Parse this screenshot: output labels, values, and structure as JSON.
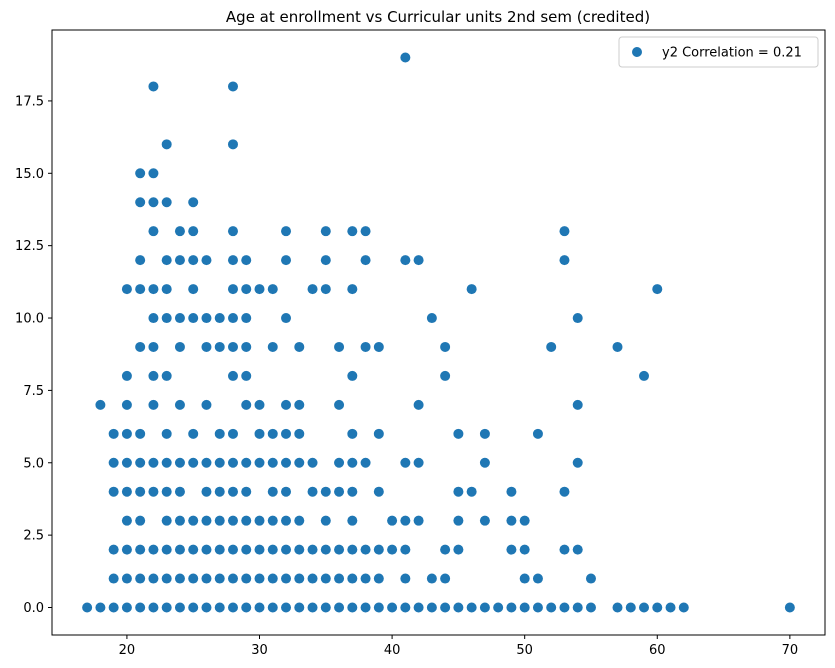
{
  "chart_data": {
    "type": "scatter",
    "title": "Age at enrollment vs Curricular units 2nd sem (credited)",
    "xlabel": "",
    "ylabel": "",
    "xlim": [
      14.35,
      72.65
    ],
    "ylim": [
      -0.95,
      19.95
    ],
    "x_ticks": [
      20,
      30,
      40,
      50,
      60,
      70
    ],
    "y_ticks": [
      0.0,
      2.5,
      5.0,
      7.5,
      10.0,
      12.5,
      15.0,
      17.5
    ],
    "x_tick_labels": [
      "20",
      "30",
      "40",
      "50",
      "60",
      "70"
    ],
    "y_tick_labels": [
      "0.0",
      "2.5",
      "5.0",
      "7.5",
      "10.0",
      "12.5",
      "15.0",
      "17.5"
    ],
    "legend": {
      "position": "top-right",
      "label": "y2 Correlation = 0.21"
    },
    "marker_color": "#1f77b4",
    "series": [
      {
        "name": "y2 Correlation = 0.21",
        "points": [
          [
            17,
            0
          ],
          [
            18,
            0
          ],
          [
            19,
            0
          ],
          [
            20,
            0
          ],
          [
            21,
            0
          ],
          [
            22,
            0
          ],
          [
            23,
            0
          ],
          [
            24,
            0
          ],
          [
            25,
            0
          ],
          [
            26,
            0
          ],
          [
            27,
            0
          ],
          [
            28,
            0
          ],
          [
            29,
            0
          ],
          [
            30,
            0
          ],
          [
            31,
            0
          ],
          [
            32,
            0
          ],
          [
            33,
            0
          ],
          [
            34,
            0
          ],
          [
            35,
            0
          ],
          [
            36,
            0
          ],
          [
            37,
            0
          ],
          [
            38,
            0
          ],
          [
            39,
            0
          ],
          [
            40,
            0
          ],
          [
            41,
            0
          ],
          [
            42,
            0
          ],
          [
            43,
            0
          ],
          [
            44,
            0
          ],
          [
            45,
            0
          ],
          [
            46,
            0
          ],
          [
            47,
            0
          ],
          [
            48,
            0
          ],
          [
            49,
            0
          ],
          [
            50,
            0
          ],
          [
            51,
            0
          ],
          [
            52,
            0
          ],
          [
            53,
            0
          ],
          [
            54,
            0
          ],
          [
            55,
            0
          ],
          [
            57,
            0
          ],
          [
            58,
            0
          ],
          [
            59,
            0
          ],
          [
            60,
            0
          ],
          [
            61,
            0
          ],
          [
            62,
            0
          ],
          [
            70,
            0
          ],
          [
            19,
            1
          ],
          [
            20,
            1
          ],
          [
            21,
            1
          ],
          [
            22,
            1
          ],
          [
            23,
            1
          ],
          [
            24,
            1
          ],
          [
            25,
            1
          ],
          [
            26,
            1
          ],
          [
            27,
            1
          ],
          [
            28,
            1
          ],
          [
            29,
            1
          ],
          [
            30,
            1
          ],
          [
            31,
            1
          ],
          [
            32,
            1
          ],
          [
            33,
            1
          ],
          [
            34,
            1
          ],
          [
            35,
            1
          ],
          [
            36,
            1
          ],
          [
            37,
            1
          ],
          [
            38,
            1
          ],
          [
            39,
            1
          ],
          [
            41,
            1
          ],
          [
            43,
            1
          ],
          [
            44,
            1
          ],
          [
            50,
            1
          ],
          [
            51,
            1
          ],
          [
            55,
            1
          ],
          [
            19,
            2
          ],
          [
            20,
            2
          ],
          [
            21,
            2
          ],
          [
            22,
            2
          ],
          [
            23,
            2
          ],
          [
            24,
            2
          ],
          [
            25,
            2
          ],
          [
            26,
            2
          ],
          [
            27,
            2
          ],
          [
            28,
            2
          ],
          [
            29,
            2
          ],
          [
            30,
            2
          ],
          [
            31,
            2
          ],
          [
            32,
            2
          ],
          [
            33,
            2
          ],
          [
            34,
            2
          ],
          [
            35,
            2
          ],
          [
            36,
            2
          ],
          [
            37,
            2
          ],
          [
            38,
            2
          ],
          [
            39,
            2
          ],
          [
            40,
            2
          ],
          [
            41,
            2
          ],
          [
            44,
            2
          ],
          [
            45,
            2
          ],
          [
            49,
            2
          ],
          [
            50,
            2
          ],
          [
            53,
            2
          ],
          [
            54,
            2
          ],
          [
            20,
            3
          ],
          [
            21,
            3
          ],
          [
            23,
            3
          ],
          [
            24,
            3
          ],
          [
            25,
            3
          ],
          [
            26,
            3
          ],
          [
            27,
            3
          ],
          [
            28,
            3
          ],
          [
            29,
            3
          ],
          [
            30,
            3
          ],
          [
            31,
            3
          ],
          [
            32,
            3
          ],
          [
            33,
            3
          ],
          [
            35,
            3
          ],
          [
            37,
            3
          ],
          [
            40,
            3
          ],
          [
            41,
            3
          ],
          [
            42,
            3
          ],
          [
            45,
            3
          ],
          [
            47,
            3
          ],
          [
            49,
            3
          ],
          [
            50,
            3
          ],
          [
            19,
            4
          ],
          [
            20,
            4
          ],
          [
            21,
            4
          ],
          [
            22,
            4
          ],
          [
            23,
            4
          ],
          [
            24,
            4
          ],
          [
            26,
            4
          ],
          [
            27,
            4
          ],
          [
            28,
            4
          ],
          [
            29,
            4
          ],
          [
            31,
            4
          ],
          [
            32,
            4
          ],
          [
            34,
            4
          ],
          [
            35,
            4
          ],
          [
            36,
            4
          ],
          [
            37,
            4
          ],
          [
            39,
            4
          ],
          [
            45,
            4
          ],
          [
            46,
            4
          ],
          [
            49,
            4
          ],
          [
            53,
            4
          ],
          [
            19,
            5
          ],
          [
            20,
            5
          ],
          [
            21,
            5
          ],
          [
            22,
            5
          ],
          [
            23,
            5
          ],
          [
            24,
            5
          ],
          [
            25,
            5
          ],
          [
            26,
            5
          ],
          [
            27,
            5
          ],
          [
            28,
            5
          ],
          [
            29,
            5
          ],
          [
            30,
            5
          ],
          [
            31,
            5
          ],
          [
            32,
            5
          ],
          [
            33,
            5
          ],
          [
            34,
            5
          ],
          [
            36,
            5
          ],
          [
            37,
            5
          ],
          [
            38,
            5
          ],
          [
            41,
            5
          ],
          [
            42,
            5
          ],
          [
            47,
            5
          ],
          [
            54,
            5
          ],
          [
            19,
            6
          ],
          [
            20,
            6
          ],
          [
            21,
            6
          ],
          [
            23,
            6
          ],
          [
            25,
            6
          ],
          [
            27,
            6
          ],
          [
            28,
            6
          ],
          [
            30,
            6
          ],
          [
            31,
            6
          ],
          [
            32,
            6
          ],
          [
            33,
            6
          ],
          [
            37,
            6
          ],
          [
            39,
            6
          ],
          [
            45,
            6
          ],
          [
            47,
            6
          ],
          [
            51,
            6
          ],
          [
            18,
            7
          ],
          [
            20,
            7
          ],
          [
            22,
            7
          ],
          [
            24,
            7
          ],
          [
            26,
            7
          ],
          [
            29,
            7
          ],
          [
            30,
            7
          ],
          [
            32,
            7
          ],
          [
            33,
            7
          ],
          [
            36,
            7
          ],
          [
            42,
            7
          ],
          [
            54,
            7
          ],
          [
            20,
            8
          ],
          [
            22,
            8
          ],
          [
            23,
            8
          ],
          [
            28,
            8
          ],
          [
            29,
            8
          ],
          [
            37,
            8
          ],
          [
            44,
            8
          ],
          [
            59,
            8
          ],
          [
            21,
            9
          ],
          [
            22,
            9
          ],
          [
            24,
            9
          ],
          [
            26,
            9
          ],
          [
            27,
            9
          ],
          [
            28,
            9
          ],
          [
            29,
            9
          ],
          [
            31,
            9
          ],
          [
            33,
            9
          ],
          [
            36,
            9
          ],
          [
            38,
            9
          ],
          [
            39,
            9
          ],
          [
            44,
            9
          ],
          [
            52,
            9
          ],
          [
            57,
            9
          ],
          [
            22,
            10
          ],
          [
            23,
            10
          ],
          [
            24,
            10
          ],
          [
            25,
            10
          ],
          [
            26,
            10
          ],
          [
            27,
            10
          ],
          [
            28,
            10
          ],
          [
            29,
            10
          ],
          [
            32,
            10
          ],
          [
            43,
            10
          ],
          [
            54,
            10
          ],
          [
            20,
            11
          ],
          [
            21,
            11
          ],
          [
            22,
            11
          ],
          [
            23,
            11
          ],
          [
            25,
            11
          ],
          [
            28,
            11
          ],
          [
            29,
            11
          ],
          [
            30,
            11
          ],
          [
            31,
            11
          ],
          [
            34,
            11
          ],
          [
            35,
            11
          ],
          [
            37,
            11
          ],
          [
            46,
            11
          ],
          [
            60,
            11
          ],
          [
            21,
            12
          ],
          [
            23,
            12
          ],
          [
            24,
            12
          ],
          [
            25,
            12
          ],
          [
            26,
            12
          ],
          [
            28,
            12
          ],
          [
            29,
            12
          ],
          [
            32,
            12
          ],
          [
            35,
            12
          ],
          [
            38,
            12
          ],
          [
            41,
            12
          ],
          [
            42,
            12
          ],
          [
            53,
            12
          ],
          [
            22,
            13
          ],
          [
            24,
            13
          ],
          [
            25,
            13
          ],
          [
            28,
            13
          ],
          [
            32,
            13
          ],
          [
            35,
            13
          ],
          [
            37,
            13
          ],
          [
            38,
            13
          ],
          [
            53,
            13
          ],
          [
            21,
            14
          ],
          [
            22,
            14
          ],
          [
            23,
            14
          ],
          [
            25,
            14
          ],
          [
            21,
            15
          ],
          [
            22,
            15
          ],
          [
            23,
            16
          ],
          [
            28,
            16
          ],
          [
            22,
            18
          ],
          [
            28,
            18
          ],
          [
            41,
            19
          ]
        ]
      }
    ]
  }
}
